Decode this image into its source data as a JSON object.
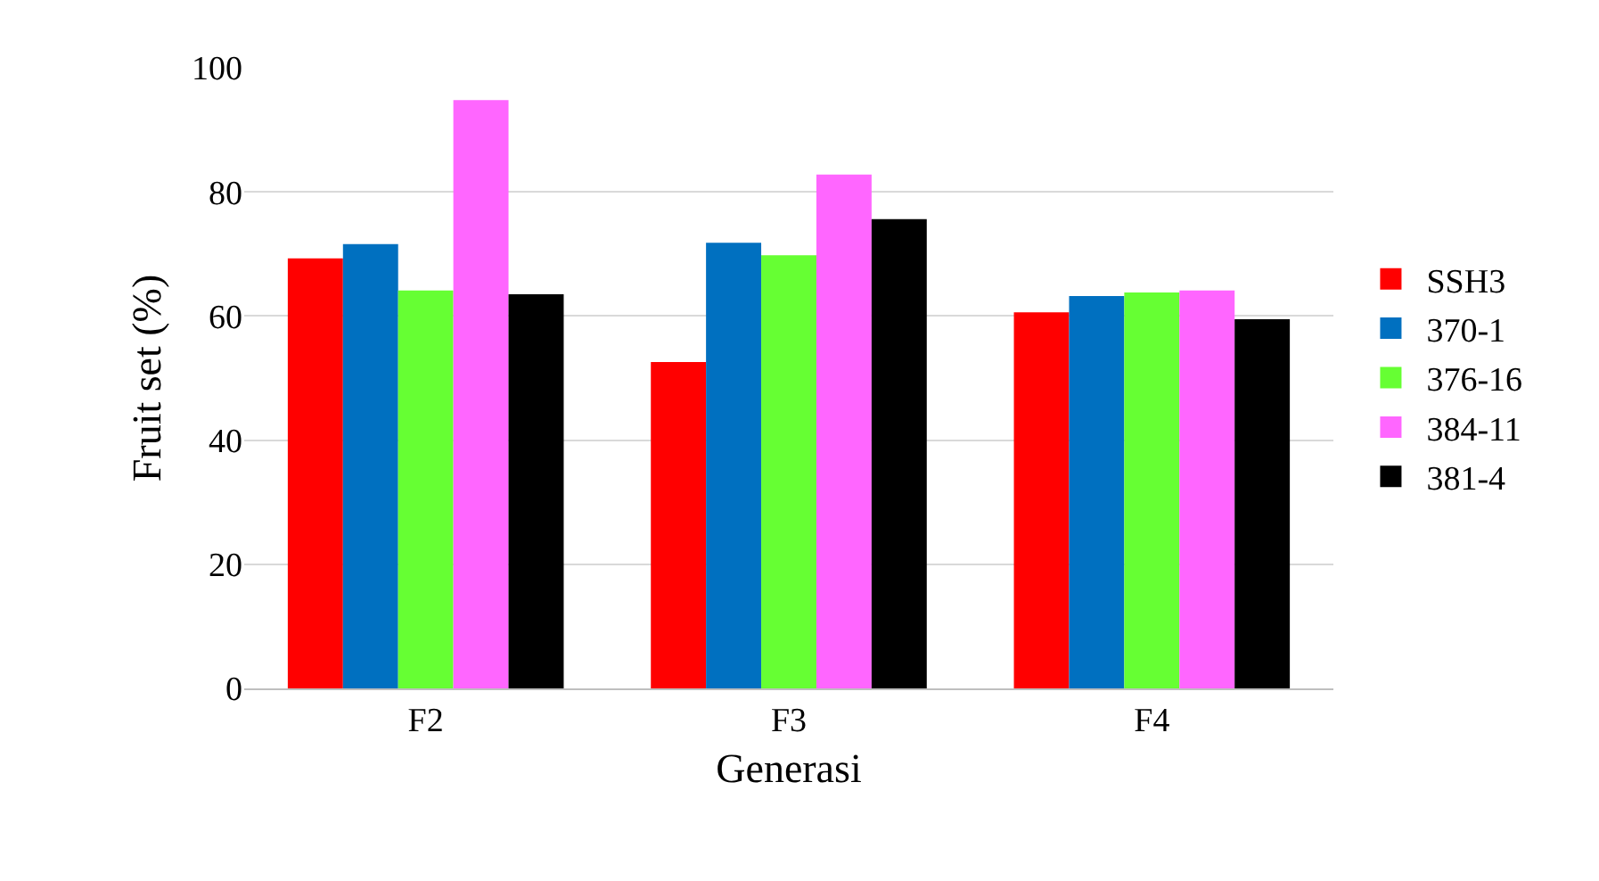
{
  "chart_data": {
    "type": "bar",
    "xlabel": "Generasi",
    "ylabel": "Fruit set (%)",
    "categories": [
      "F2",
      "F3",
      "F4"
    ],
    "series": [
      {
        "name": "SSH3",
        "color": "#ff0000",
        "values": [
          69.3,
          52.6,
          60.6
        ]
      },
      {
        "name": "370-1",
        "color": "#0070c0",
        "values": [
          71.6,
          71.8,
          63.2
        ]
      },
      {
        "name": "376-16",
        "color": "#66ff33",
        "values": [
          64.1,
          69.8,
          63.8
        ]
      },
      {
        "name": "384-11",
        "color": "#ff66ff",
        "values": [
          94.8,
          82.8,
          64.1
        ]
      },
      {
        "name": "381-4",
        "color": "#000000",
        "values": [
          63.5,
          75.6,
          59.5
        ]
      }
    ],
    "ylim": [
      0,
      100
    ],
    "yticks": [
      0,
      20,
      40,
      60,
      80,
      100
    ],
    "grid": "y",
    "legend": "right"
  }
}
